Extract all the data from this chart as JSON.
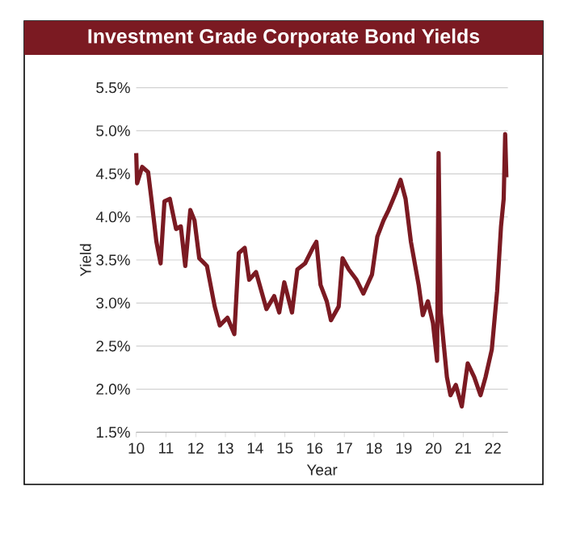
{
  "chart_data": {
    "type": "line",
    "title": "Investment Grade Corporate Bond Yields",
    "xlabel": "Year",
    "ylabel": "Yield",
    "series": [
      {
        "color": "#7b1a22",
        "x": [
          10.0,
          10.03,
          10.2,
          10.4,
          10.5,
          10.68,
          10.82,
          10.95,
          11.13,
          11.34,
          11.5,
          11.65,
          11.82,
          11.96,
          12.12,
          12.38,
          12.64,
          12.81,
          13.07,
          13.3,
          13.45,
          13.65,
          13.8,
          14.03,
          14.38,
          14.64,
          14.81,
          14.98,
          15.24,
          15.42,
          15.68,
          15.94,
          16.06,
          16.2,
          16.41,
          16.55,
          16.81,
          16.94,
          17.15,
          17.41,
          17.64,
          17.93,
          18.11,
          18.32,
          18.49,
          18.72,
          18.89,
          19.06,
          19.24,
          19.5,
          19.64,
          19.81,
          19.98,
          20.12,
          20.17,
          20.24,
          20.45,
          20.57,
          20.75,
          20.95,
          21.15,
          21.37,
          21.58,
          21.75,
          21.96,
          22.14,
          22.27,
          22.36,
          22.41,
          22.45
        ],
        "values": [
          4.74,
          4.39,
          4.58,
          4.52,
          4.24,
          3.71,
          3.46,
          4.18,
          4.21,
          3.86,
          3.89,
          3.43,
          4.08,
          3.96,
          3.52,
          3.43,
          2.96,
          2.74,
          2.83,
          2.64,
          3.58,
          3.64,
          3.27,
          3.36,
          2.93,
          3.08,
          2.89,
          3.24,
          2.89,
          3.39,
          3.46,
          3.64,
          3.71,
          3.21,
          3.02,
          2.8,
          2.96,
          3.52,
          3.39,
          3.27,
          3.11,
          3.33,
          3.77,
          3.96,
          4.08,
          4.27,
          4.43,
          4.21,
          3.71,
          3.21,
          2.86,
          3.02,
          2.77,
          2.33,
          4.74,
          2.89,
          2.14,
          1.93,
          2.05,
          1.8,
          2.3,
          2.14,
          1.93,
          2.14,
          2.46,
          3.14,
          3.89,
          4.21,
          4.96,
          4.46
        ]
      }
    ],
    "xlim": [
      10,
      22.5
    ],
    "ylim": [
      1.5,
      5.5
    ],
    "xticks": [
      10,
      11,
      12,
      13,
      14,
      15,
      16,
      17,
      18,
      19,
      20,
      21,
      22
    ],
    "yticks": [
      {
        "value": 1.5,
        "label": "1.5%"
      },
      {
        "value": 2.0,
        "label": "2.0%"
      },
      {
        "value": 2.5,
        "label": "2.5%"
      },
      {
        "value": 3.0,
        "label": "3.0%"
      },
      {
        "value": 3.5,
        "label": "3.5%"
      },
      {
        "value": 4.0,
        "label": "4.0%"
      },
      {
        "value": 4.5,
        "label": "4.5%"
      },
      {
        "value": 5.0,
        "label": "5.0%"
      },
      {
        "value": 5.5,
        "label": "5.5%"
      }
    ],
    "grid": "y"
  }
}
